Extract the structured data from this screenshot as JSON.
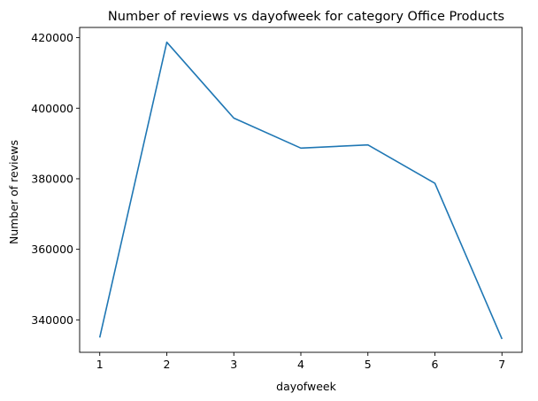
{
  "chart_data": {
    "type": "line",
    "title": "Number of reviews vs dayofweek for category Office Products",
    "xlabel": "dayofweek",
    "ylabel": "Number of reviews",
    "x": [
      1,
      2,
      3,
      4,
      5,
      6,
      7
    ],
    "series": [
      {
        "values": [
          335000,
          418700,
          397200,
          388700,
          389600,
          378700,
          334600
        ]
      }
    ],
    "xticks": [
      1,
      2,
      3,
      4,
      5,
      6,
      7
    ],
    "yticks": [
      340000,
      360000,
      380000,
      400000,
      420000
    ],
    "xlim": [
      0.7,
      7.3
    ],
    "ylim": [
      330800,
      422900
    ],
    "grid": false,
    "colors": {
      "line": "#1f77b4",
      "axes": "#000000"
    }
  }
}
